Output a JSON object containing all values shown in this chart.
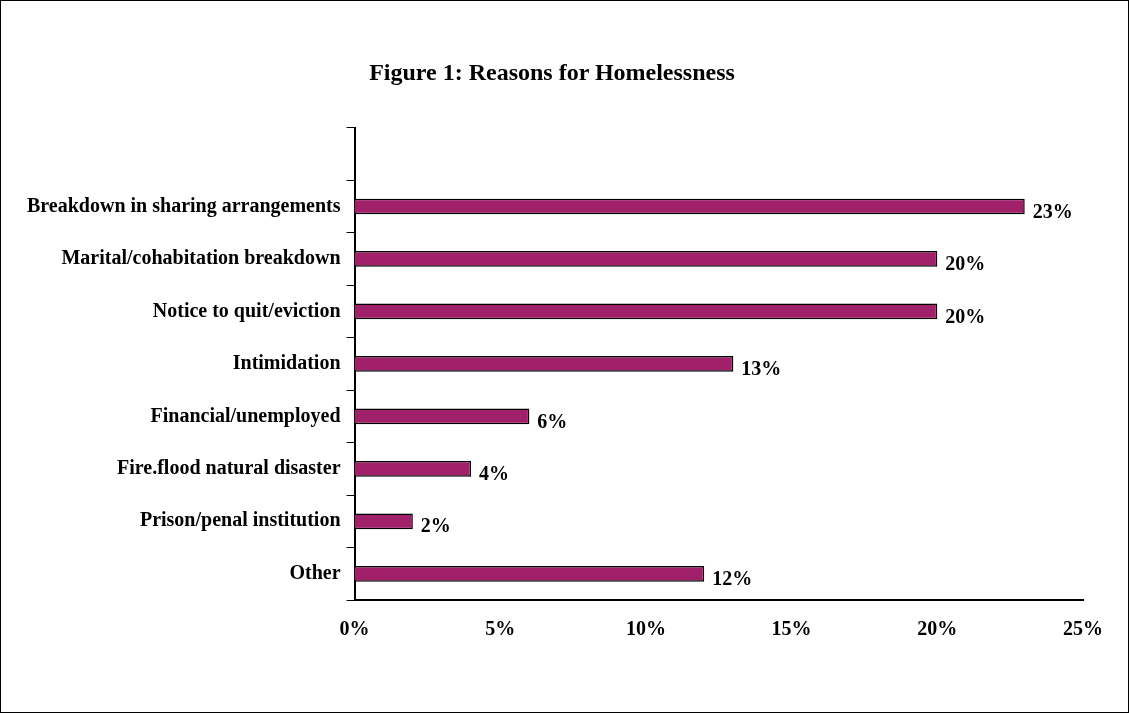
{
  "chart_data": {
    "type": "bar",
    "orientation": "horizontal",
    "title": "Figure 1: Reasons for Homelessness",
    "categories": [
      null,
      "Breakdown in sharing arrangements",
      "Marital/cohabitation breakdown",
      "Notice to quit/eviction",
      "Intimidation",
      "Financial/unemployed",
      "Fire.flood natural disaster",
      "Prison/penal institution",
      "Other"
    ],
    "values": [
      null,
      23,
      20,
      20,
      13,
      6,
      4,
      2,
      12
    ],
    "value_labels": [
      null,
      "23%",
      "20%",
      "20%",
      "13%",
      "6%",
      "4%",
      "2%",
      "12%"
    ],
    "color": "#a0206a",
    "xlim": [
      0,
      25
    ],
    "xticks": [
      {
        "value": 0,
        "label": "0%"
      },
      {
        "value": 5,
        "label": "5%"
      },
      {
        "value": 10,
        "label": "10%"
      },
      {
        "value": 15,
        "label": "15%"
      },
      {
        "value": 20,
        "label": "20%"
      },
      {
        "value": 25,
        "label": "25%"
      }
    ],
    "grid": false,
    "legend": false
  }
}
